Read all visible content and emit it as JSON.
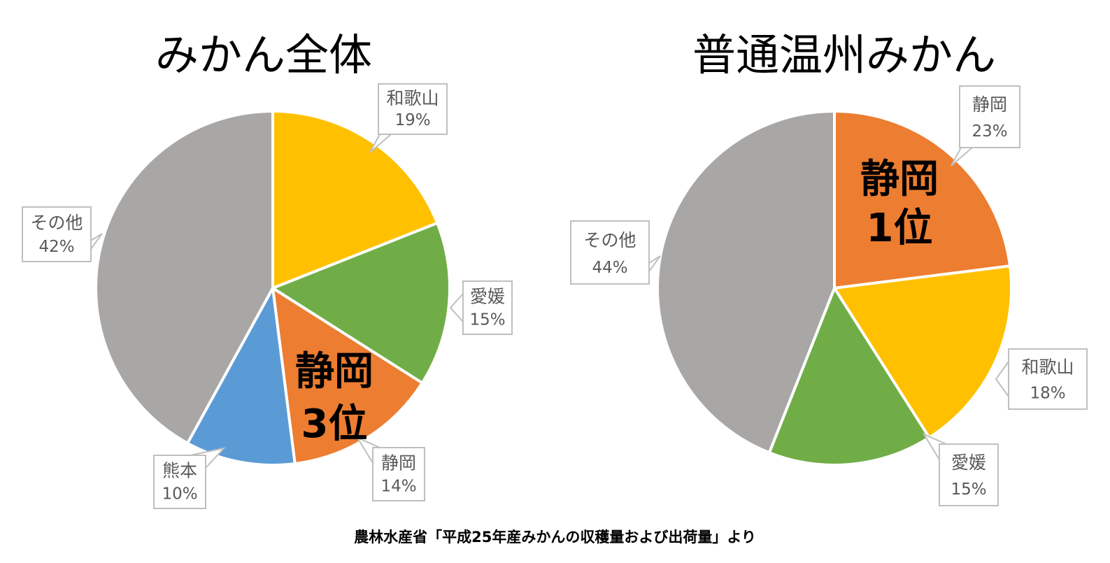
{
  "chart_data": [
    {
      "type": "pie",
      "title": "みかん全体",
      "categories": [
        "和歌山",
        "愛媛",
        "静岡",
        "熊本",
        "その他"
      ],
      "values": [
        19,
        15,
        14,
        10,
        42
      ],
      "value_labels": [
        "19%",
        "15%",
        "14%",
        "10%",
        "42%"
      ],
      "colors": [
        "#FFC000",
        "#70AD47",
        "#ED7D31",
        "#5B9BD5",
        "#A9A6A6"
      ],
      "highlight": {
        "category": "静岡",
        "text_line1": "静岡",
        "text_line2": "3位"
      }
    },
    {
      "type": "pie",
      "title": "普通温州みかん",
      "categories": [
        "静岡",
        "和歌山",
        "愛媛",
        "その他"
      ],
      "values": [
        23,
        18,
        15,
        44
      ],
      "value_labels": [
        "23%",
        "18%",
        "15%",
        "44%"
      ],
      "colors": [
        "#ED7D31",
        "#FFC000",
        "#70AD47",
        "#A9A6A6"
      ],
      "highlight": {
        "category": "静岡",
        "text_line1": "静岡",
        "text_line2": "1位"
      }
    }
  ],
  "source_note": "農林水産省「平成25年産みかんの収穫量および出荷量」より"
}
